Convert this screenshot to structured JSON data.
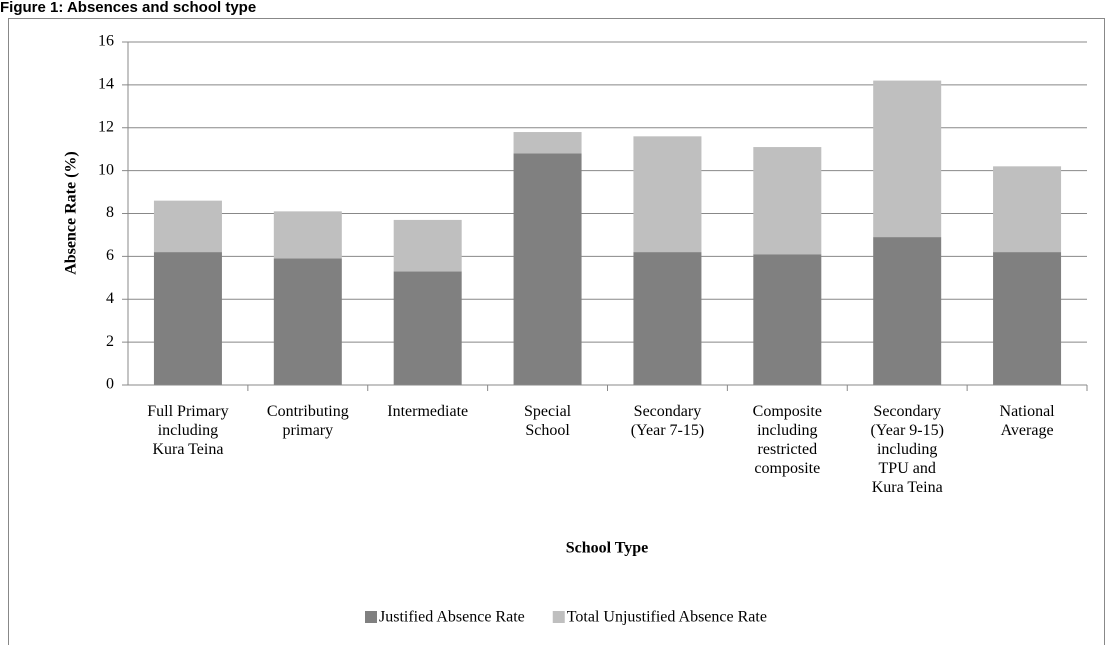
{
  "figure_title": "Figure 1: Absences and school type",
  "chart_data": {
    "type": "bar",
    "stacked": true,
    "x_label": "School Type",
    "y_label": "Absence Rate (%)",
    "categories": [
      "Full Primary\nincluding\nKura Teina",
      "Contributing\nprimary",
      "Intermediate",
      "Special\nSchool",
      "Secondary\n(Year 7-15)",
      "Composite\nincluding\nrestricted\ncomposite",
      "Secondary\n(Year 9-15)\nincluding\nTPU and\nKura Teina",
      "National\nAverage"
    ],
    "series": [
      {
        "name": "Justified Absence Rate",
        "color": "#808080",
        "values": [
          6.2,
          5.9,
          5.3,
          10.8,
          6.2,
          6.1,
          6.9,
          6.2
        ]
      },
      {
        "name": "Total Unjustified Absence Rate",
        "color": "#bfbfbf",
        "values": [
          2.4,
          2.2,
          2.4,
          1.0,
          5.4,
          5.0,
          7.3,
          4.0
        ]
      }
    ],
    "ylim": [
      0,
      16
    ],
    "yticks": [
      0,
      2,
      4,
      6,
      8,
      10,
      12,
      14,
      16
    ],
    "grid": true,
    "legend": "bottom"
  }
}
